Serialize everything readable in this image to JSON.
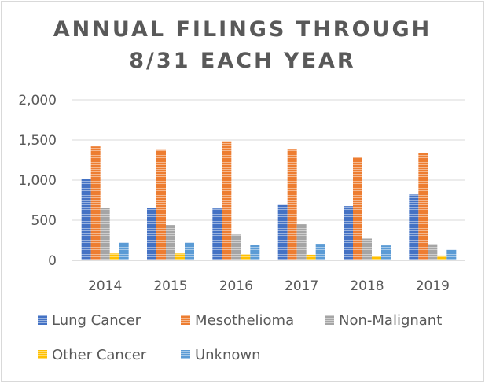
{
  "chart_data": {
    "type": "bar",
    "title_lines": [
      "ANNUAL FILINGS THROUGH",
      "8/31 EACH YEAR"
    ],
    "categories": [
      "2014",
      "2015",
      "2016",
      "2017",
      "2018",
      "2019"
    ],
    "ylim": [
      0,
      2000
    ],
    "yticks": [
      0,
      500,
      1000,
      1500,
      2000
    ],
    "ytick_labels": [
      "0",
      "500",
      "1,000",
      "1,500",
      "2,000"
    ],
    "grid": true,
    "legend_position": "bottom",
    "series": [
      {
        "name": "Lung Cancer",
        "color": "#4472C4",
        "values": [
          1010,
          655,
          645,
          690,
          675,
          820
        ]
      },
      {
        "name": "Mesothelioma",
        "color": "#ED7D31",
        "values": [
          1420,
          1375,
          1485,
          1380,
          1290,
          1335
        ]
      },
      {
        "name": "Non-Malignant",
        "color": "#A5A5A5",
        "values": [
          650,
          440,
          320,
          450,
          270,
          200
        ]
      },
      {
        "name": "Other Cancer",
        "color": "#FFC000",
        "values": [
          85,
          85,
          75,
          70,
          50,
          60
        ]
      },
      {
        "name": "Unknown",
        "color": "#5B9BD5",
        "values": [
          220,
          220,
          190,
          205,
          185,
          130
        ]
      }
    ]
  }
}
